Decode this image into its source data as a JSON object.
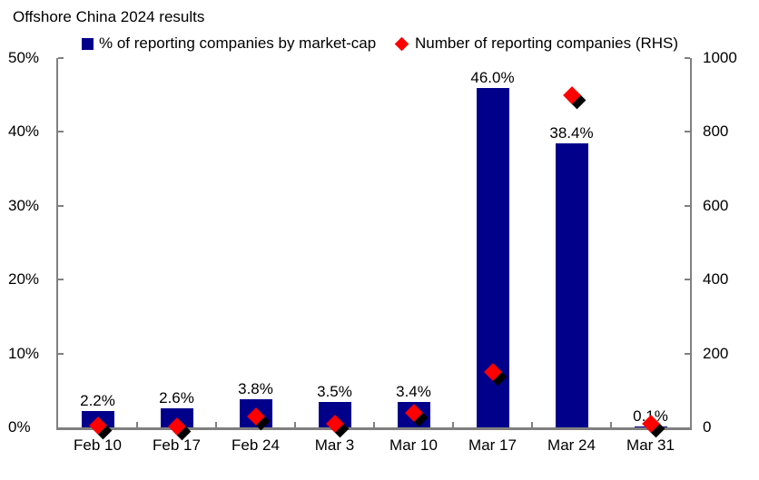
{
  "title": "Offshore China 2024 results",
  "legend": {
    "items": [
      {
        "label": "% of reporting companies by market-cap",
        "marker": "square-icon",
        "color": "#00008B"
      },
      {
        "label": "Number of reporting companies (RHS)",
        "marker": "diamond-icon",
        "color": "#FF0000"
      }
    ],
    "position": "top"
  },
  "chart_data": {
    "type": "bar",
    "title": "Offshore China 2024 results",
    "categories": [
      "Feb 10",
      "Feb 17",
      "Feb 24",
      "Mar 3",
      "Mar 10",
      "Mar 17",
      "Mar 24",
      "Mar 31"
    ],
    "series": [
      {
        "name": "% of reporting companies by market-cap",
        "type": "bar",
        "axis": "left",
        "color": "#00008B",
        "values": [
          2.2,
          2.6,
          3.8,
          3.5,
          3.4,
          46.0,
          38.4,
          0.1
        ],
        "data_labels": [
          "2.2%",
          "2.6%",
          "3.8%",
          "3.5%",
          "3.4%",
          "46.0%",
          "38.4%",
          "0.1%"
        ]
      },
      {
        "name": "Number of reporting companies (RHS)",
        "type": "scatter",
        "marker": "diamond",
        "axis": "right",
        "color": "#FF0000",
        "marker_shadow_color": "#000000",
        "values": [
          5,
          2,
          30,
          10,
          40,
          150,
          900,
          10
        ]
      }
    ],
    "left_axis": {
      "min": 0,
      "max": 50,
      "tick_labels": [
        "0%",
        "10%",
        "20%",
        "30%",
        "40%",
        "50%"
      ]
    },
    "right_axis": {
      "min": 0,
      "max": 1000,
      "tick_labels": [
        "0",
        "200",
        "400",
        "600",
        "800",
        "1000"
      ]
    },
    "legend_position": "top",
    "grid": false,
    "axis_color": "#808080",
    "text_color": "#000000",
    "background": "#FFFFFF"
  }
}
